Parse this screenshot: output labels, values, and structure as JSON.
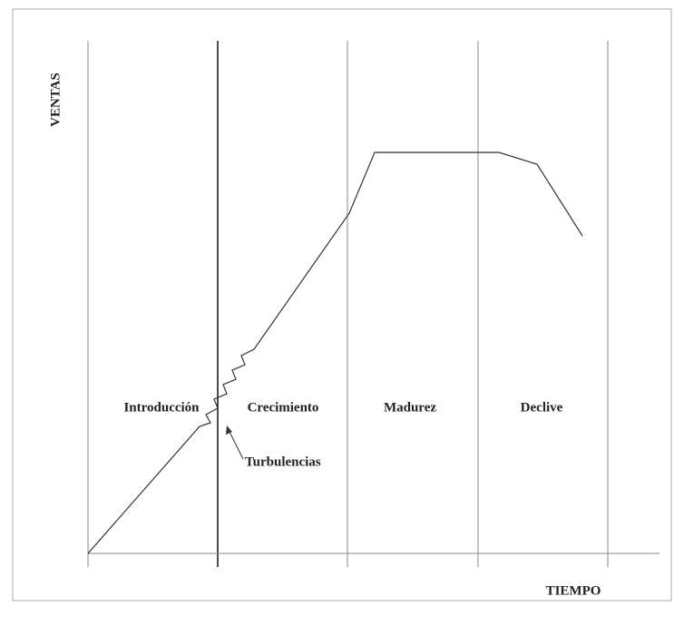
{
  "diagram": {
    "y_axis_label": "VENTAS",
    "x_axis_label": "TIEMPO",
    "stages": [
      "Introducción",
      "Crecimiento",
      "Madurez",
      "Declive"
    ],
    "annotation": "Turbulencias"
  }
}
